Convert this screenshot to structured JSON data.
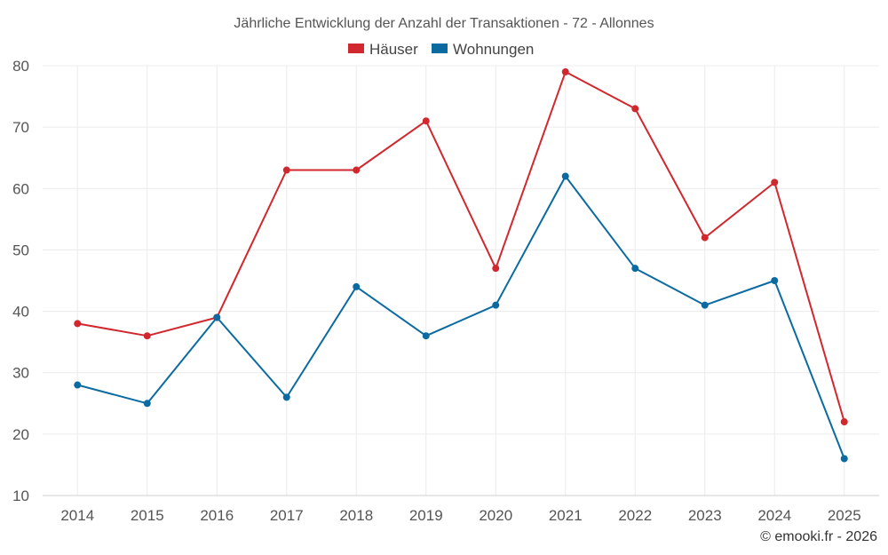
{
  "chart_data": {
    "type": "line",
    "title": "Jährliche Entwicklung der Anzahl der Transaktionen - 72 - Allonnes",
    "categories": [
      "2014",
      "2015",
      "2016",
      "2017",
      "2018",
      "2019",
      "2020",
      "2021",
      "2022",
      "2023",
      "2024",
      "2025"
    ],
    "series": [
      {
        "name": "Häuser",
        "color": "#d0282e",
        "values": [
          38,
          36,
          39,
          63,
          63,
          71,
          47,
          79,
          73,
          52,
          61,
          22
        ]
      },
      {
        "name": "Wohnungen",
        "color": "#0b6ba0",
        "values": [
          28,
          25,
          39,
          26,
          44,
          36,
          41,
          62,
          47,
          41,
          45,
          16
        ]
      }
    ],
    "ylim": [
      10,
      80
    ],
    "yticks": [
      10,
      20,
      30,
      40,
      50,
      60,
      70,
      80
    ],
    "grid": true,
    "legend": "top-center"
  },
  "credit": "© emooki.fr - 2026"
}
